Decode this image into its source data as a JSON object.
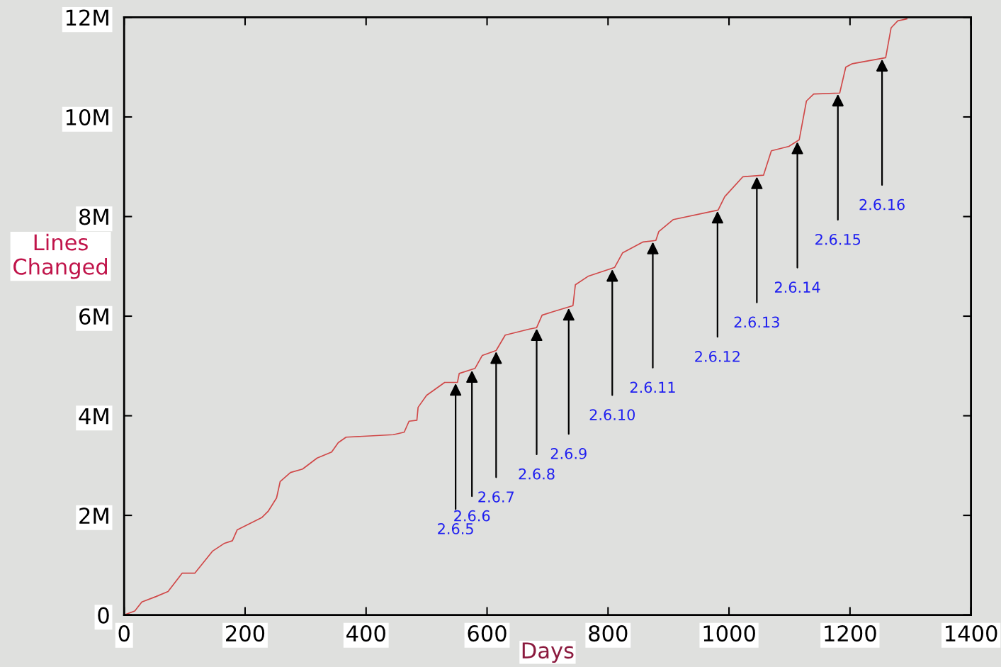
{
  "chart_data": {
    "type": "line",
    "xlabel": "Days",
    "ylabel": "Lines\nChanged",
    "xlim": [
      0,
      1400
    ],
    "ylim": [
      0,
      12000000
    ],
    "xticks": [
      0,
      200,
      400,
      600,
      800,
      1000,
      1200,
      1400
    ],
    "yticks": [
      0,
      {
        "value": 2000000,
        "label": "2M"
      },
      {
        "value": 4000000,
        "label": "4M"
      },
      {
        "value": 6000000,
        "label": "6M"
      },
      {
        "value": 8000000,
        "label": "8M"
      },
      {
        "value": 10000000,
        "label": "10M"
      },
      {
        "value": 12000000,
        "label": "12M"
      }
    ],
    "grid": false,
    "marker": "none",
    "line_style": "solid",
    "series": [
      {
        "color": "#d04848",
        "x": [
          0,
          17.6,
          29.3,
          52.7,
          72.6,
          96,
          117,
          146,
          166,
          179,
          187,
          228,
          238,
          252,
          258,
          275,
          295,
          319,
          343,
          354,
          367,
          445,
          463,
          471,
          484,
          486,
          500,
          530,
          551,
          554,
          580,
          592,
          615,
          630,
          670,
          682,
          691,
          709,
          742,
          746,
          767,
          811,
          824,
          858,
          879,
          884,
          908,
          982,
          993,
          1023,
          1057,
          1070,
          1099,
          1116,
          1128,
          1140,
          1183,
          1193,
          1204,
          1259,
          1268,
          1279,
          1294
        ],
        "values": [
          0,
          80000,
          260000,
          370000,
          470000,
          840000,
          840000,
          1280000,
          1440000,
          1490000,
          1710000,
          1960000,
          2080000,
          2350000,
          2680000,
          2860000,
          2930000,
          3150000,
          3270000,
          3460000,
          3570000,
          3620000,
          3670000,
          3890000,
          3910000,
          4170000,
          4410000,
          4670000,
          4670000,
          4850000,
          4950000,
          5210000,
          5310000,
          5620000,
          5740000,
          5770000,
          6020000,
          6090000,
          6210000,
          6630000,
          6800000,
          6980000,
          7270000,
          7490000,
          7520000,
          7700000,
          7940000,
          8130000,
          8400000,
          8800000,
          8830000,
          9320000,
          9410000,
          9540000,
          10320000,
          10460000,
          10480000,
          11000000,
          11070000,
          11190000,
          11790000,
          11930000,
          11970000
        ]
      }
    ],
    "annotations": [
      {
        "text": "2.6.5",
        "x": 548,
        "y": 4670000
      },
      {
        "text": "2.6.6",
        "x": 575,
        "y": 4930000
      },
      {
        "text": "2.6.7",
        "x": 615,
        "y": 5310000
      },
      {
        "text": "2.6.8",
        "x": 682,
        "y": 5770000
      },
      {
        "text": "2.6.9",
        "x": 735,
        "y": 6180000
      },
      {
        "text": "2.6.10",
        "x": 807,
        "y": 6960000
      },
      {
        "text": "2.6.11",
        "x": 874,
        "y": 7510000
      },
      {
        "text": "2.6.12",
        "x": 981,
        "y": 8130000
      },
      {
        "text": "2.6.13",
        "x": 1046,
        "y": 8820000
      },
      {
        "text": "2.6.14",
        "x": 1113,
        "y": 9520000
      },
      {
        "text": "2.6.15",
        "x": 1180,
        "y": 10480000
      },
      {
        "text": "2.6.16",
        "x": 1253,
        "y": 11180000
      }
    ]
  }
}
